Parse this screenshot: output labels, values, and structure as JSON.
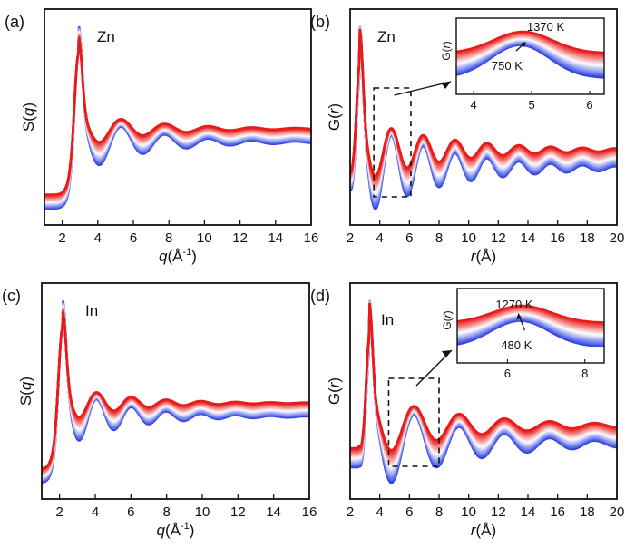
{
  "chart_data": [
    {
      "id": "a",
      "type": "line",
      "panel_label": "(a)",
      "element": "Zn",
      "ylabel": "S(q)",
      "xlabel": "q(Å⁻¹)",
      "xlim": [
        1,
        16
      ],
      "xticks": [
        2,
        4,
        6,
        8,
        10,
        12,
        14,
        16
      ],
      "yticks_shown": false,
      "series_description": "Family of curves colored blue (low T) to red (high T), offset vertically",
      "curve_model": {
        "kind": "sq",
        "peak": 2.9,
        "period": 2.45,
        "decay": 0.28
      },
      "color_low": "#2a3fe0",
      "color_high": "#e81a1a"
    },
    {
      "id": "b",
      "type": "line",
      "panel_label": "(b)",
      "element": "Zn",
      "ylabel": "G(r)",
      "xlabel": "r(Å)",
      "xlim": [
        2,
        20
      ],
      "xticks": [
        2,
        4,
        6,
        8,
        10,
        12,
        14,
        16,
        18,
        20
      ],
      "yticks_shown": false,
      "curve_model": {
        "kind": "gr",
        "peak": 2.65,
        "period": 2.15,
        "decay": 0.18
      },
      "zoom_box": {
        "x": [
          3.6,
          6.1
        ]
      },
      "inset": {
        "ylabel": "G(r)",
        "xlim": [
          3.7,
          6.25
        ],
        "xticks": [
          4,
          5,
          6
        ],
        "annotations": [
          "1370 K",
          "750 K"
        ],
        "temperature_high": "1370 K",
        "temperature_low": "750 K"
      },
      "color_low": "#2a3fe0",
      "color_high": "#e81a1a"
    },
    {
      "id": "c",
      "type": "line",
      "panel_label": "(c)",
      "element": "In",
      "ylabel": "S(q)",
      "xlabel": "q(Å⁻¹)",
      "xlim": [
        1,
        16
      ],
      "xticks": [
        2,
        4,
        6,
        8,
        10,
        12,
        14,
        16
      ],
      "yticks_shown": false,
      "curve_model": {
        "kind": "sq",
        "peak": 2.15,
        "period": 1.95,
        "decay": 0.3
      },
      "color_low": "#2a3fe0",
      "color_high": "#e81a1a"
    },
    {
      "id": "d",
      "type": "line",
      "panel_label": "(d)",
      "element": "In",
      "ylabel": "G(r)",
      "xlabel": "r(Å)",
      "xlim": [
        2,
        20
      ],
      "xticks": [
        2,
        4,
        6,
        8,
        10,
        12,
        14,
        16,
        18,
        20
      ],
      "yticks_shown": false,
      "curve_model": {
        "kind": "gr",
        "peak": 3.3,
        "period": 3.05,
        "decay": 0.17
      },
      "zoom_box": {
        "x": [
          4.6,
          8.0
        ]
      },
      "inset": {
        "ylabel": "G(r)",
        "xlim": [
          4.7,
          8.5
        ],
        "xticks": [
          6,
          8
        ],
        "annotations": [
          "1270 K",
          "480 K"
        ],
        "temperature_high": "1270 K",
        "temperature_low": "480 K"
      },
      "color_low": "#2a3fe0",
      "color_high": "#e81a1a"
    }
  ]
}
